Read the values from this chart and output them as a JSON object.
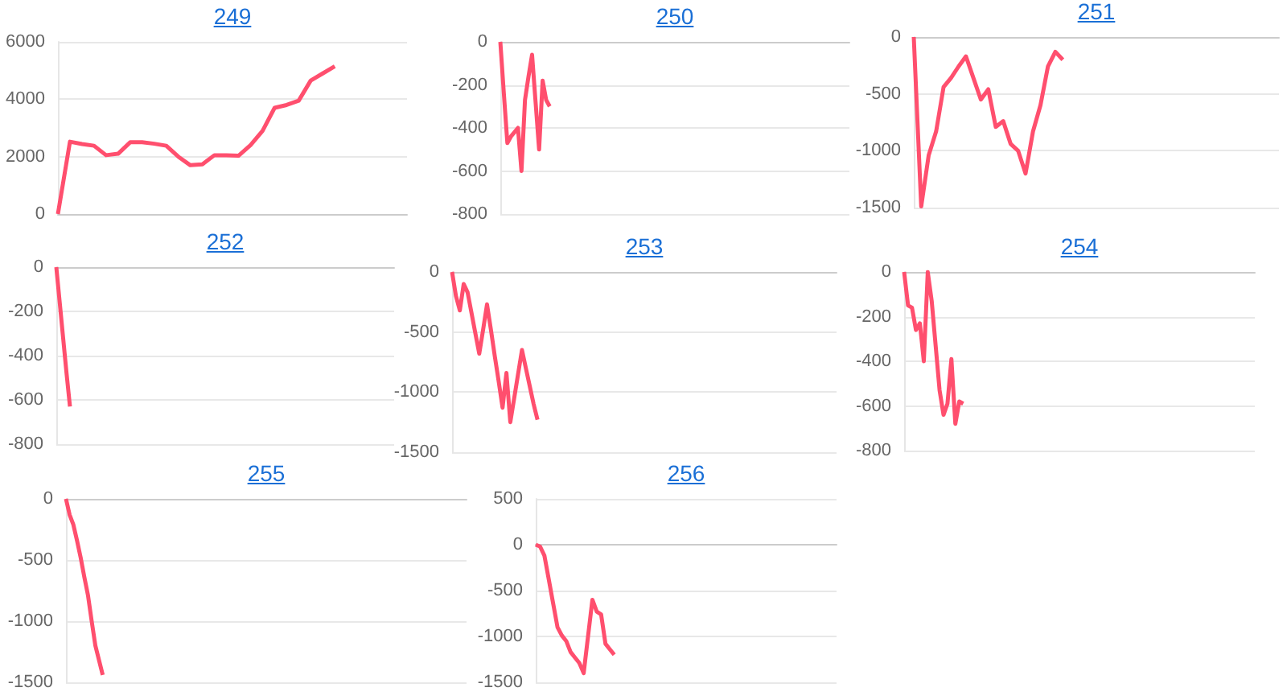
{
  "chart_data": [
    {
      "type": "line",
      "title": "249",
      "categories": [
        null,
        null,
        null,
        null,
        null,
        null,
        null,
        null,
        null,
        null,
        null,
        null,
        null,
        null,
        null,
        null,
        null,
        null,
        null,
        null,
        null,
        null,
        null,
        null,
        null,
        null,
        null,
        null,
        null,
        null
      ],
      "values": [
        0,
        2520,
        2440,
        2380,
        2050,
        2100,
        2500,
        2500,
        2450,
        2380,
        2000,
        1700,
        1730,
        2050,
        2050,
        2030,
        2400,
        2900,
        3700,
        3800,
        3950,
        4650,
        4900,
        5150,
        null,
        null,
        null,
        null,
        null,
        null
      ],
      "color": "#ff4f6e",
      "ylim": [
        0,
        6000
      ],
      "yticks": [
        0,
        2000,
        4000,
        6000
      ],
      "grid": "y",
      "tick_labels": "y"
    },
    {
      "type": "line",
      "title": "250",
      "categories": [
        null,
        null,
        null,
        null,
        null,
        null,
        null,
        null,
        null,
        null,
        null,
        null,
        null,
        null,
        null,
        null,
        null,
        null,
        null,
        null,
        null,
        null,
        null,
        null,
        null,
        null,
        null,
        null,
        null,
        null,
        null,
        null,
        null,
        null,
        null,
        null,
        null,
        null,
        null,
        null,
        null,
        null,
        null,
        null,
        null,
        null,
        null,
        null,
        null,
        null,
        null,
        null,
        null,
        null,
        null,
        null,
        null,
        null,
        null,
        null,
        null,
        null,
        null,
        null,
        null,
        null,
        null,
        null,
        null,
        null,
        null,
        null,
        null,
        null,
        null,
        null,
        null,
        null,
        null,
        null,
        null,
        null,
        null,
        null,
        null,
        null,
        null,
        null,
        null,
        null,
        null,
        null,
        null,
        null,
        null,
        null,
        null,
        null,
        null,
        null
      ],
      "values": [
        0,
        -240,
        -470,
        -440,
        -420,
        -400,
        -600,
        -270,
        -160,
        -60,
        -280,
        -500,
        -180,
        -270,
        -300,
        null,
        null,
        null,
        null,
        null,
        null,
        null,
        null,
        null,
        null,
        null,
        null,
        null,
        null,
        null,
        null,
        null,
        null,
        null,
        null,
        null,
        null,
        null,
        null,
        null,
        null,
        null,
        null,
        null,
        null,
        null,
        null,
        null,
        null,
        null,
        null,
        null,
        null,
        null,
        null,
        null,
        null,
        null,
        null,
        null,
        null,
        null,
        null,
        null,
        null,
        null,
        null,
        null,
        null,
        null,
        null,
        null,
        null,
        null,
        null,
        null,
        null,
        null,
        null,
        null,
        null,
        null,
        null,
        null,
        null,
        null,
        null,
        null,
        null,
        null,
        null,
        null,
        null,
        null,
        null,
        null,
        null,
        null,
        null,
        null
      ],
      "color": "#ff4f6e",
      "ylim": [
        -800,
        0
      ],
      "yticks": [
        -800,
        -600,
        -400,
        -200,
        0
      ],
      "grid": "y",
      "tick_labels": "y"
    },
    {
      "type": "line",
      "title": "251",
      "categories": [
        null,
        null,
        null,
        null,
        null,
        null,
        null,
        null,
        null,
        null,
        null,
        null,
        null,
        null,
        null,
        null,
        null,
        null,
        null,
        null,
        null,
        null,
        null,
        null,
        null,
        null,
        null,
        null,
        null,
        null,
        null,
        null,
        null,
        null,
        null,
        null,
        null,
        null,
        null,
        null,
        null,
        null,
        null,
        null,
        null,
        null,
        null,
        null,
        null,
        null
      ],
      "values": [
        0,
        -1490,
        -1040,
        -830,
        -440,
        -360,
        -260,
        -170,
        -360,
        -550,
        -460,
        -790,
        -740,
        -940,
        -1000,
        -1200,
        -830,
        -600,
        -260,
        -130,
        -200,
        null,
        null,
        null,
        null,
        null,
        null,
        null,
        null,
        null,
        null,
        null,
        null,
        null,
        null,
        null,
        null,
        null,
        null,
        null,
        null,
        null,
        null,
        null,
        null,
        null,
        null,
        null,
        null,
        null
      ],
      "color": "#ff4f6e",
      "ylim": [
        -1500,
        0
      ],
      "yticks": [
        -1500,
        -1000,
        -500,
        0
      ],
      "grid": "y",
      "tick_labels": "y"
    },
    {
      "type": "line",
      "title": "252",
      "categories": [
        null,
        null,
        null,
        null,
        null,
        null,
        null,
        null,
        null,
        null,
        null,
        null,
        null,
        null,
        null,
        null,
        null,
        null,
        null,
        null,
        null,
        null,
        null,
        null,
        null,
        null,
        null,
        null,
        null,
        null,
        null,
        null,
        null,
        null,
        null,
        null,
        null,
        null,
        null,
        null,
        null,
        null,
        null,
        null,
        null,
        null,
        null,
        null,
        null,
        null,
        null,
        null,
        null,
        null,
        null,
        null,
        null,
        null,
        null,
        null,
        null,
        null,
        null,
        null,
        null,
        null,
        null,
        null,
        null,
        null,
        null,
        null,
        null,
        null,
        null,
        null,
        null,
        null,
        null,
        null,
        null,
        null,
        null,
        null,
        null,
        null,
        null,
        null,
        null,
        null,
        null,
        null,
        null,
        null,
        null,
        null,
        null,
        null,
        null,
        null
      ],
      "values": [
        0,
        -160,
        -320,
        -480,
        -630,
        null,
        null,
        null,
        null,
        null,
        null,
        null,
        null,
        null,
        null,
        null,
        null,
        null,
        null,
        null,
        null,
        null,
        null,
        null,
        null,
        null,
        null,
        null,
        null,
        null,
        null,
        null,
        null,
        null,
        null,
        null,
        null,
        null,
        null,
        null,
        null,
        null,
        null,
        null,
        null,
        null,
        null,
        null,
        null,
        null,
        null,
        null,
        null,
        null,
        null,
        null,
        null,
        null,
        null,
        null,
        null,
        null,
        null,
        null,
        null,
        null,
        null,
        null,
        null,
        null,
        null,
        null,
        null,
        null,
        null,
        null,
        null,
        null,
        null,
        null,
        null,
        null,
        null,
        null,
        null,
        null,
        null,
        null,
        null,
        null,
        null,
        null,
        null,
        null,
        null,
        null,
        null,
        null,
        null,
        null
      ],
      "color": "#ff4f6e",
      "ylim": [
        -800,
        0
      ],
      "yticks": [
        -800,
        -600,
        -400,
        -200,
        0
      ],
      "grid": "y",
      "tick_labels": "y"
    },
    {
      "type": "line",
      "title": "253",
      "categories": [
        null,
        null,
        null,
        null,
        null,
        null,
        null,
        null,
        null,
        null,
        null,
        null,
        null,
        null,
        null,
        null,
        null,
        null,
        null,
        null,
        null,
        null,
        null,
        null,
        null,
        null,
        null,
        null,
        null,
        null,
        null,
        null,
        null,
        null,
        null,
        null,
        null,
        null,
        null,
        null,
        null,
        null,
        null,
        null,
        null,
        null,
        null,
        null,
        null,
        null,
        null,
        null,
        null,
        null,
        null,
        null,
        null,
        null,
        null,
        null,
        null,
        null,
        null,
        null,
        null,
        null,
        null,
        null,
        null,
        null,
        null,
        null,
        null,
        null,
        null,
        null,
        null,
        null,
        null,
        null,
        null,
        null,
        null,
        null,
        null,
        null,
        null,
        null,
        null,
        null,
        null,
        null,
        null,
        null,
        null,
        null,
        null,
        null,
        null,
        null
      ],
      "values": [
        0,
        -200,
        -320,
        -100,
        -170,
        -340,
        -510,
        -680,
        -480,
        -270,
        -480,
        -700,
        -910,
        -1130,
        -840,
        -1250,
        -1050,
        -850,
        -650,
        -800,
        -950,
        -1100,
        -1230,
        null,
        null,
        null,
        null,
        null,
        null,
        null,
        null,
        null,
        null,
        null,
        null,
        null,
        null,
        null,
        null,
        null,
        null,
        null,
        null,
        null,
        null,
        null,
        null,
        null,
        null,
        null,
        null,
        null,
        null,
        null,
        null,
        null,
        null,
        null,
        null,
        null,
        null,
        null,
        null,
        null,
        null,
        null,
        null,
        null,
        null,
        null,
        null,
        null,
        null,
        null,
        null,
        null,
        null,
        null,
        null,
        null,
        null,
        null,
        null,
        null,
        null,
        null,
        null,
        null,
        null,
        null,
        null,
        null,
        null,
        null,
        null,
        null,
        null,
        null,
        null,
        null
      ],
      "color": "#ff4f6e",
      "ylim": [
        -1500,
        0
      ],
      "yticks": [
        -1500,
        -1000,
        -500,
        0
      ],
      "grid": "y",
      "tick_labels": "y"
    },
    {
      "type": "line",
      "title": "254",
      "categories": [
        null,
        null,
        null,
        null,
        null,
        null,
        null,
        null,
        null,
        null,
        null,
        null,
        null,
        null,
        null,
        null,
        null,
        null,
        null,
        null,
        null,
        null,
        null,
        null,
        null,
        null,
        null,
        null,
        null,
        null,
        null,
        null,
        null,
        null,
        null,
        null,
        null,
        null,
        null,
        null,
        null,
        null,
        null,
        null,
        null,
        null,
        null,
        null,
        null,
        null,
        null,
        null,
        null,
        null,
        null,
        null,
        null,
        null,
        null,
        null,
        null,
        null,
        null,
        null,
        null,
        null,
        null,
        null,
        null,
        null,
        null,
        null,
        null,
        null,
        null,
        null,
        null,
        null,
        null,
        null,
        null,
        null,
        null,
        null,
        null,
        null,
        null,
        null,
        null,
        null
      ],
      "values": [
        0,
        -150,
        -160,
        -260,
        -230,
        -400,
        0,
        -130,
        -330,
        -530,
        -640,
        -590,
        -390,
        -680,
        -580,
        -590,
        null,
        null,
        null,
        null,
        null,
        null,
        null,
        null,
        null,
        null,
        null,
        null,
        null,
        null,
        null,
        null,
        null,
        null,
        null,
        null,
        null,
        null,
        null,
        null,
        null,
        null,
        null,
        null,
        null,
        null,
        null,
        null,
        null,
        null,
        null,
        null,
        null,
        null,
        null,
        null,
        null,
        null,
        null,
        null,
        null,
        null,
        null,
        null,
        null,
        null,
        null,
        null,
        null,
        null,
        null,
        null,
        null,
        null,
        null,
        null,
        null,
        null,
        null,
        null,
        null,
        null,
        null,
        null,
        null,
        null,
        null,
        null,
        null,
        null
      ],
      "color": "#ff4f6e",
      "ylim": [
        -800,
        0
      ],
      "yticks": [
        -800,
        -600,
        -400,
        -200,
        0
      ],
      "grid": "y",
      "tick_labels": "y"
    },
    {
      "type": "line",
      "title": "255",
      "categories": [
        null,
        null,
        null,
        null,
        null,
        null,
        null,
        null,
        null,
        null,
        null,
        null,
        null,
        null,
        null,
        null,
        null,
        null,
        null,
        null,
        null,
        null,
        null,
        null,
        null,
        null,
        null,
        null,
        null,
        null,
        null,
        null,
        null,
        null,
        null,
        null,
        null,
        null,
        null,
        null,
        null,
        null,
        null,
        null,
        null,
        null,
        null,
        null,
        null,
        null,
        null,
        null,
        null,
        null,
        null,
        null,
        null,
        null,
        null,
        null,
        null,
        null,
        null,
        null,
        null,
        null,
        null,
        null,
        null,
        null,
        null,
        null,
        null,
        null,
        null,
        null,
        null,
        null,
        null,
        null,
        null,
        null,
        null,
        null,
        null,
        null,
        null,
        null,
        null,
        null,
        null,
        null,
        null,
        null,
        null,
        null,
        null,
        null,
        null,
        null,
        null,
        null,
        null,
        null,
        null,
        null,
        null,
        null,
        null,
        null
      ],
      "values": [
        0,
        -130,
        -210,
        -340,
        -480,
        -640,
        -790,
        -1000,
        -1200,
        -1320,
        -1440,
        null,
        null,
        null,
        null,
        null,
        null,
        null,
        null,
        null,
        null,
        null,
        null,
        null,
        null,
        null,
        null,
        null,
        null,
        null,
        null,
        null,
        null,
        null,
        null,
        null,
        null,
        null,
        null,
        null,
        null,
        null,
        null,
        null,
        null,
        null,
        null,
        null,
        null,
        null,
        null,
        null,
        null,
        null,
        null,
        null,
        null,
        null,
        null,
        null,
        null,
        null,
        null,
        null,
        null,
        null,
        null,
        null,
        null,
        null,
        null,
        null,
        null,
        null,
        null,
        null,
        null,
        null,
        null,
        null,
        null,
        null,
        null,
        null,
        null,
        null,
        null,
        null,
        null,
        null,
        null,
        null,
        null,
        null,
        null,
        null,
        null,
        null,
        null,
        null,
        null,
        null,
        null,
        null,
        null,
        null,
        null,
        null,
        null,
        null
      ],
      "color": "#ff4f6e",
      "ylim": [
        -1500,
        0
      ],
      "yticks": [
        -1500,
        -1000,
        -500,
        0
      ],
      "grid": "y",
      "tick_labels": "y"
    },
    {
      "type": "line",
      "title": "256",
      "categories": [
        null,
        null,
        null,
        null,
        null,
        null,
        null,
        null,
        null,
        null,
        null,
        null,
        null,
        null,
        null,
        null,
        null,
        null,
        null,
        null,
        null,
        null,
        null,
        null,
        null,
        null,
        null,
        null,
        null,
        null,
        null,
        null,
        null,
        null,
        null,
        null,
        null,
        null,
        null,
        null,
        null,
        null,
        null,
        null,
        null,
        null,
        null,
        null,
        null,
        null,
        null,
        null,
        null,
        null,
        null,
        null,
        null,
        null,
        null,
        null,
        null,
        null,
        null,
        null,
        null,
        null,
        null,
        null,
        null,
        null
      ],
      "values": [
        0,
        -20,
        -120,
        -380,
        -640,
        -900,
        -990,
        -1050,
        -1170,
        -1230,
        -1290,
        -1400,
        -1000,
        -600,
        -730,
        -760,
        -1080,
        -1140,
        -1200,
        null,
        null,
        null,
        null,
        null,
        null,
        null,
        null,
        null,
        null,
        null,
        null,
        null,
        null,
        null,
        null,
        null,
        null,
        null,
        null,
        null,
        null,
        null,
        null,
        null,
        null,
        null,
        null,
        null,
        null,
        null,
        null,
        null,
        null,
        null,
        null,
        null,
        null,
        null,
        null,
        null,
        null,
        null,
        null,
        null,
        null,
        null,
        null,
        null,
        null,
        null
      ],
      "color": "#ff4f6e",
      "ylim": [
        -1500,
        500
      ],
      "yticks": [
        -1500,
        -1000,
        -500,
        0,
        500
      ],
      "grid": "y",
      "tick_labels": "y"
    }
  ]
}
